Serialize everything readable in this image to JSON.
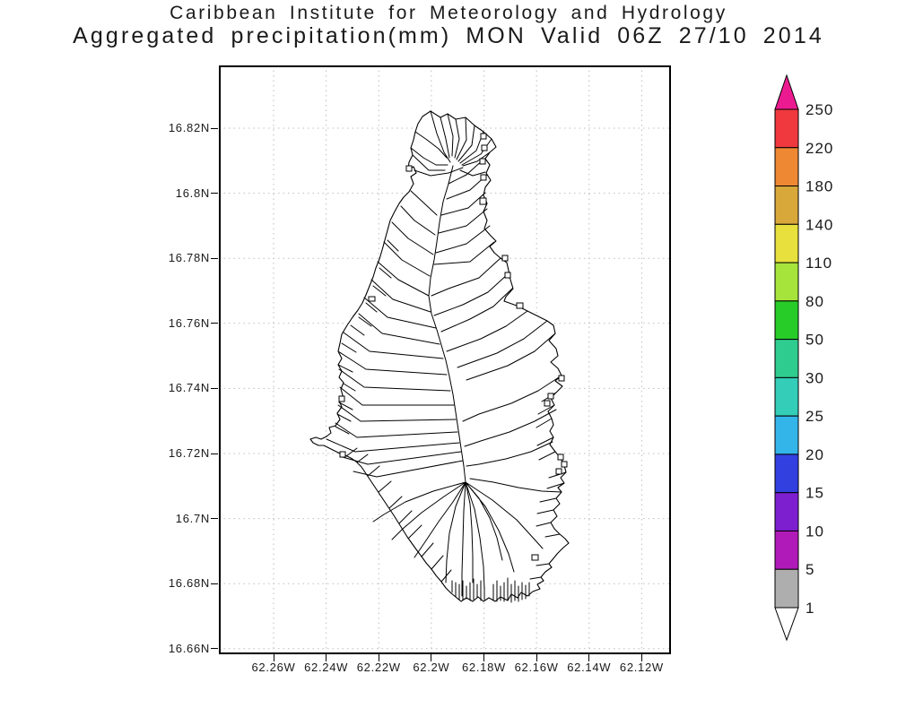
{
  "title": {
    "line1": "Caribbean Institute for Meteorology and Hydrology",
    "line2": "Aggregated precipitation(mm) MON Valid 06Z 27/10 2014"
  },
  "map": {
    "lat_ticks": [
      "16.82N",
      "16.8N",
      "16.78N",
      "16.76N",
      "16.74N",
      "16.72N",
      "16.7N",
      "16.68N",
      "16.66N"
    ],
    "lon_ticks": [
      "62.26W",
      "62.24W",
      "62.22W",
      "62.2W",
      "62.18W",
      "62.16W",
      "62.14W",
      "62.12W"
    ]
  },
  "colorbar": {
    "labels_top_to_bottom": [
      "250",
      "220",
      "180",
      "140",
      "110",
      "80",
      "50",
      "30",
      "25",
      "20",
      "15",
      "10",
      "5",
      "1"
    ],
    "segment_colors_top_to_bottom": [
      "#f0383f",
      "#ee8833",
      "#d9a83a",
      "#e8e03c",
      "#a6e43c",
      "#28cc28",
      "#2fcc8f",
      "#33cdb8",
      "#33b5ea",
      "#3340e0",
      "#7d1fcf",
      "#b01ab8",
      "#aeaeae"
    ],
    "over_color": "#ec1a90",
    "under_color": "#ffffff"
  }
}
